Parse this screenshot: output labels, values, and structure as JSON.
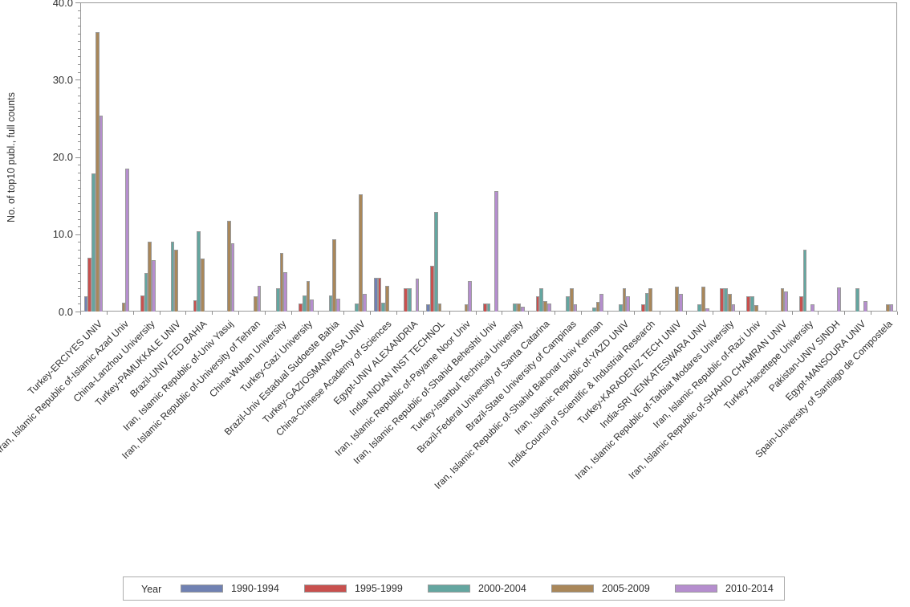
{
  "chart_data": {
    "type": "bar",
    "title": "",
    "xlabel": "",
    "ylabel": "No. of top10 publ., full counts",
    "ylim": [
      0,
      40
    ],
    "y_major_ticks": [
      "0.0",
      "10.0",
      "20.0",
      "30.0",
      "40.0"
    ],
    "y_major_step": 10,
    "y_minor_step": 1,
    "grid": false,
    "legend_title": "Year",
    "legend_position": "bottom",
    "categories": [
      "Turkey-ERCIYES UNIV",
      "Iran, Islamic Republic of-Islamic Azad Univ",
      "China-Lanzhou University",
      "Turkey-PAMUKKALE UNIV",
      "Brazil-UNIV FED BAHIA",
      "Iran, Islamic Republic of-Univ Yasuj",
      "Iran, Islamic Republic of-University of Tehran",
      "China-Wuhan University",
      "Turkey-Gazi University",
      "Brazil-Univ Estadual Sudoeste Bahia",
      "Turkey-GAZIOSMANPASA UNIV",
      "China-Chinese Academy of Sciences",
      "Egypt-UNIV ALEXANDRIA",
      "India-INDIAN INST TECHNOL",
      "Iran, Islamic Republic of-Payame Noor Univ",
      "Iran, Islamic Republic of-Shahid Beheshti Univ",
      "Turkey-Istanbul Technical University",
      "Brazil-Federal University of Santa Catarina",
      "Brazil-State University of Campinas",
      "Iran, Islamic Republic of-Shahid Bahonar Univ Kerman",
      "Iran, Islamic Republic of-YAZD UNIV",
      "India-Council of Scientific & Industrial Research",
      "Turkey-KARADENIZ TECH UNIV",
      "India-SRI VENKATESWARA UNIV",
      "Iran, Islamic Republic of-Tarbiat Modares University",
      "Iran, Islamic Republic of-Razi Univ",
      "Iran, Islamic Republic of-SHAHID CHAMRAN UNIV",
      "Turkey-Hacettepe University",
      "Pakistan-UNIV SINDH",
      "Egypt-MANSOURA UNIV",
      "Spain-University of Santiago de Compostela"
    ],
    "series": [
      {
        "name": "1990-1994",
        "color": "#7081B2",
        "values": [
          2.0,
          0,
          0,
          0,
          0,
          0,
          0,
          0,
          0,
          0,
          0,
          4.4,
          0,
          0.9,
          0,
          0,
          0,
          0,
          0,
          0,
          0,
          0,
          0,
          0,
          0,
          0,
          0,
          0,
          0,
          0,
          0
        ]
      },
      {
        "name": "1995-1999",
        "color": "#C8504E",
        "values": [
          7.0,
          0,
          2.1,
          0,
          1.5,
          0,
          0,
          0,
          1.0,
          0,
          0,
          4.4,
          3.0,
          5.9,
          0,
          1.0,
          0,
          2.0,
          0,
          0,
          0,
          0.9,
          0,
          0,
          3.0,
          2.0,
          0,
          2.0,
          0,
          0,
          0
        ]
      },
      {
        "name": "2000-2004",
        "color": "#64A6A0",
        "values": [
          17.9,
          0,
          5.0,
          9.0,
          10.4,
          0,
          0,
          3.0,
          2.1,
          2.1,
          1.0,
          1.1,
          3.0,
          12.9,
          0,
          1.0,
          1.0,
          3.0,
          2.0,
          0.5,
          0.9,
          2.4,
          0,
          0.9,
          3.0,
          2.0,
          0,
          8.0,
          0,
          3.0,
          0
        ]
      },
      {
        "name": "2005-2009",
        "color": "#A9875A",
        "values": [
          36.2,
          1.1,
          9.0,
          8.0,
          6.9,
          11.7,
          2.0,
          7.6,
          4.0,
          9.3,
          15.2,
          3.3,
          0,
          1.0,
          0.9,
          0,
          1.0,
          1.3,
          3.0,
          1.2,
          3.0,
          3.0,
          3.2,
          3.2,
          2.3,
          0.8,
          3.0,
          0,
          0,
          0,
          0.9
        ]
      },
      {
        "name": "2010-2014",
        "color": "#B58ECE",
        "values": [
          25.3,
          18.5,
          6.6,
          0,
          0,
          8.8,
          3.3,
          5.1,
          1.6,
          1.7,
          2.3,
          0,
          4.3,
          0,
          4.0,
          15.6,
          0.6,
          1.0,
          0.9,
          2.3,
          2.0,
          0,
          2.3,
          0.4,
          0.9,
          0,
          2.6,
          0.9,
          3.1,
          1.3,
          0.9
        ]
      }
    ]
  },
  "colors": {
    "frame": "#999999",
    "bar_border": "#9a9a9a",
    "text": "#2e2e2e",
    "legend_border": "#aeaeae",
    "background": "#ffffff"
  }
}
